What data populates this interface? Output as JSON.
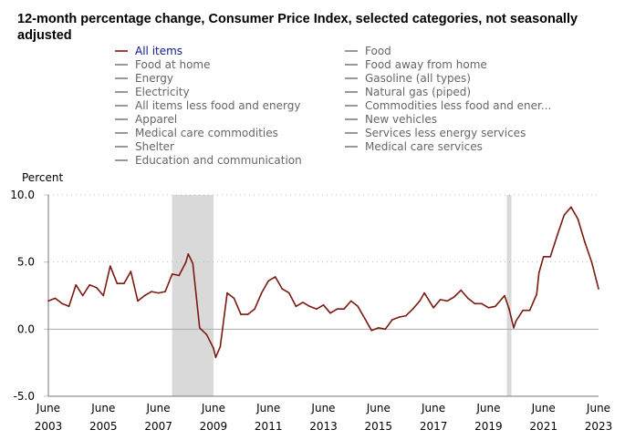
{
  "title": "12-month percentage change, Consumer Price Index, selected categories, not seasonally adjusted",
  "legend": [
    {
      "label": "All items",
      "active": true
    },
    {
      "label": "Food at home"
    },
    {
      "label": "Energy"
    },
    {
      "label": "Electricity"
    },
    {
      "label": "All items less food and energy"
    },
    {
      "label": "Apparel"
    },
    {
      "label": "Medical care commodities"
    },
    {
      "label": "Shelter"
    },
    {
      "label": "Education and communication"
    },
    {
      "label": "Food"
    },
    {
      "label": "Food away from home"
    },
    {
      "label": "Gasoline (all types)"
    },
    {
      "label": "Natural gas (piped)"
    },
    {
      "label": "Commodities less food and ener..."
    },
    {
      "label": "New vehicles"
    },
    {
      "label": "Services less energy services"
    },
    {
      "label": "Medical care services"
    }
  ],
  "chart_data": {
    "type": "line",
    "title": "12-month percentage change, Consumer Price Index, selected categories, not seasonally adjusted",
    "ylabel": "Percent",
    "ylim": [
      -5,
      10
    ],
    "yticks": [
      "10.0",
      "5.0",
      "0.0",
      "-5.0"
    ],
    "xlim": [
      "2003-06",
      "2023-06"
    ],
    "xticks": [
      [
        "June",
        "2003"
      ],
      [
        "June",
        "2005"
      ],
      [
        "June",
        "2007"
      ],
      [
        "June",
        "2009"
      ],
      [
        "June",
        "2011"
      ],
      [
        "June",
        "2013"
      ],
      [
        "June",
        "2015"
      ],
      [
        "June",
        "2017"
      ],
      [
        "June",
        "2019"
      ],
      [
        "June",
        "2021"
      ],
      [
        "June",
        "2023"
      ]
    ],
    "grid": "horizontal dotted",
    "line_color": "#7a1a10",
    "shaded_periods": [
      [
        "2007-12",
        "2009-06"
      ],
      [
        "2020-02",
        "2020-04"
      ]
    ],
    "series": [
      {
        "name": "All items",
        "points": [
          [
            "2003-06",
            2.1
          ],
          [
            "2003-09",
            2.3
          ],
          [
            "2003-12",
            1.9
          ],
          [
            "2004-03",
            1.7
          ],
          [
            "2004-06",
            3.3
          ],
          [
            "2004-09",
            2.5
          ],
          [
            "2004-12",
            3.3
          ],
          [
            "2005-03",
            3.1
          ],
          [
            "2005-06",
            2.5
          ],
          [
            "2005-09",
            4.7
          ],
          [
            "2005-12",
            3.4
          ],
          [
            "2006-03",
            3.4
          ],
          [
            "2006-06",
            4.3
          ],
          [
            "2006-09",
            2.1
          ],
          [
            "2006-12",
            2.5
          ],
          [
            "2007-03",
            2.8
          ],
          [
            "2007-06",
            2.7
          ],
          [
            "2007-09",
            2.8
          ],
          [
            "2007-12",
            4.1
          ],
          [
            "2008-03",
            4.0
          ],
          [
            "2008-06",
            5.0
          ],
          [
            "2008-07",
            5.6
          ],
          [
            "2008-09",
            4.9
          ],
          [
            "2008-12",
            0.1
          ],
          [
            "2009-03",
            -0.4
          ],
          [
            "2009-06",
            -1.4
          ],
          [
            "2009-07",
            -2.1
          ],
          [
            "2009-09",
            -1.3
          ],
          [
            "2009-12",
            2.7
          ],
          [
            "2010-03",
            2.3
          ],
          [
            "2010-06",
            1.1
          ],
          [
            "2010-09",
            1.1
          ],
          [
            "2010-12",
            1.5
          ],
          [
            "2011-03",
            2.7
          ],
          [
            "2011-06",
            3.6
          ],
          [
            "2011-09",
            3.9
          ],
          [
            "2011-12",
            3.0
          ],
          [
            "2012-03",
            2.7
          ],
          [
            "2012-06",
            1.7
          ],
          [
            "2012-09",
            2.0
          ],
          [
            "2012-12",
            1.7
          ],
          [
            "2013-03",
            1.5
          ],
          [
            "2013-06",
            1.8
          ],
          [
            "2013-09",
            1.2
          ],
          [
            "2013-12",
            1.5
          ],
          [
            "2014-03",
            1.5
          ],
          [
            "2014-06",
            2.1
          ],
          [
            "2014-09",
            1.7
          ],
          [
            "2014-12",
            0.8
          ],
          [
            "2015-03",
            -0.1
          ],
          [
            "2015-06",
            0.1
          ],
          [
            "2015-09",
            0.0
          ],
          [
            "2015-12",
            0.7
          ],
          [
            "2016-03",
            0.9
          ],
          [
            "2016-06",
            1.0
          ],
          [
            "2016-09",
            1.5
          ],
          [
            "2016-12",
            2.1
          ],
          [
            "2017-02",
            2.7
          ],
          [
            "2017-06",
            1.6
          ],
          [
            "2017-09",
            2.2
          ],
          [
            "2017-12",
            2.1
          ],
          [
            "2018-03",
            2.4
          ],
          [
            "2018-06",
            2.9
          ],
          [
            "2018-09",
            2.3
          ],
          [
            "2018-12",
            1.9
          ],
          [
            "2019-03",
            1.9
          ],
          [
            "2019-06",
            1.6
          ],
          [
            "2019-09",
            1.7
          ],
          [
            "2019-12",
            2.3
          ],
          [
            "2020-01",
            2.5
          ],
          [
            "2020-03",
            1.5
          ],
          [
            "2020-05",
            0.1
          ],
          [
            "2020-06",
            0.6
          ],
          [
            "2020-09",
            1.4
          ],
          [
            "2020-12",
            1.4
          ],
          [
            "2021-03",
            2.6
          ],
          [
            "2021-04",
            4.2
          ],
          [
            "2021-06",
            5.4
          ],
          [
            "2021-09",
            5.4
          ],
          [
            "2021-12",
            7.0
          ],
          [
            "2022-03",
            8.5
          ],
          [
            "2022-06",
            9.1
          ],
          [
            "2022-09",
            8.2
          ],
          [
            "2022-12",
            6.5
          ],
          [
            "2023-03",
            5.0
          ],
          [
            "2023-06",
            3.0
          ]
        ]
      }
    ]
  }
}
